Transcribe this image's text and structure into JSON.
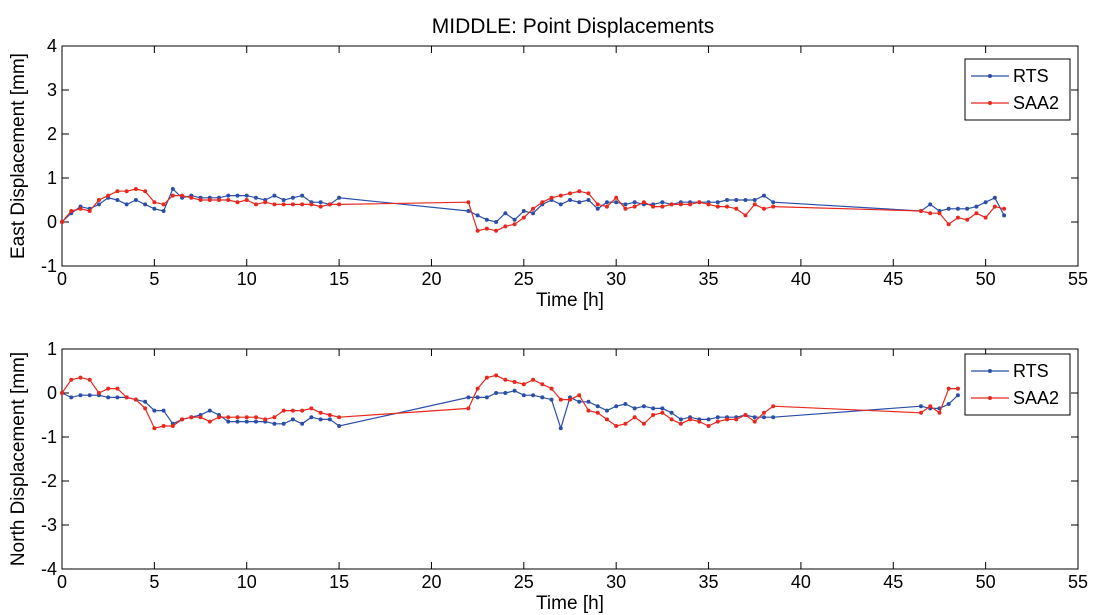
{
  "chart_data": [
    {
      "type": "line",
      "title": "MIDDLE: Point Displacements",
      "xlabel": "Time [h]",
      "ylabel": "East Displacement [mm]",
      "xlim": [
        0,
        55
      ],
      "ylim": [
        -1,
        4
      ],
      "xticks": [
        0,
        5,
        10,
        15,
        20,
        25,
        30,
        35,
        40,
        45,
        50,
        55
      ],
      "yticks": [
        -1,
        0,
        1,
        2,
        3,
        4
      ],
      "grid": false,
      "legend_position": "top-right",
      "series": [
        {
          "name": "RTS",
          "color": "#2b4fa8",
          "x": [
            0,
            0.5,
            1,
            1.5,
            2,
            2.5,
            3,
            3.5,
            4,
            4.5,
            5,
            5.5,
            6,
            6.5,
            7,
            7.5,
            8,
            8.5,
            9,
            9.5,
            10,
            10.5,
            11,
            11.5,
            12,
            12.5,
            13,
            13.5,
            14,
            14.5,
            15,
            22,
            22.5,
            23,
            23.5,
            24,
            24.5,
            25,
            25.5,
            26,
            26.5,
            27,
            27.5,
            28,
            28.5,
            29,
            29.5,
            30,
            30.5,
            31,
            31.5,
            32,
            32.5,
            33,
            33.5,
            34,
            34.5,
            35,
            35.5,
            36,
            36.5,
            37,
            37.5,
            38,
            38.5,
            46.5,
            47,
            47.5,
            48,
            48.5,
            49,
            49.5,
            50,
            50.5,
            51
          ],
          "y": [
            0,
            0.2,
            0.35,
            0.3,
            0.4,
            0.55,
            0.5,
            0.4,
            0.5,
            0.4,
            0.3,
            0.25,
            0.75,
            0.55,
            0.6,
            0.55,
            0.55,
            0.55,
            0.6,
            0.6,
            0.6,
            0.55,
            0.5,
            0.6,
            0.5,
            0.55,
            0.6,
            0.45,
            0.45,
            0.4,
            0.55,
            0.25,
            0.15,
            0.05,
            0,
            0.2,
            0.05,
            0.25,
            0.2,
            0.4,
            0.5,
            0.4,
            0.5,
            0.45,
            0.5,
            0.3,
            0.45,
            0.45,
            0.4,
            0.45,
            0.4,
            0.4,
            0.45,
            0.4,
            0.45,
            0.45,
            0.45,
            0.45,
            0.45,
            0.5,
            0.5,
            0.5,
            0.5,
            0.6,
            0.45,
            0.25,
            0.4,
            0.25,
            0.3,
            0.3,
            0.3,
            0.35,
            0.45,
            0.55,
            0.15
          ]
        },
        {
          "name": "SAA2",
          "color": "#e8281e",
          "x": [
            0,
            0.5,
            1,
            1.5,
            2,
            2.5,
            3,
            3.5,
            4,
            4.5,
            5,
            5.5,
            6,
            6.5,
            7,
            7.5,
            8,
            8.5,
            9,
            9.5,
            10,
            10.5,
            11,
            11.5,
            12,
            12.5,
            13,
            13.5,
            14,
            14.5,
            15,
            22,
            22.5,
            23,
            23.5,
            24,
            24.5,
            25,
            25.5,
            26,
            26.5,
            27,
            27.5,
            28,
            28.5,
            29,
            29.5,
            30,
            30.5,
            31,
            31.5,
            32,
            32.5,
            33,
            33.5,
            34,
            34.5,
            35,
            35.5,
            36,
            36.5,
            37,
            37.5,
            38,
            38.5,
            46.5,
            47,
            47.5,
            48,
            48.5,
            49,
            49.5,
            50,
            50.5,
            51
          ],
          "y": [
            0,
            0.25,
            0.3,
            0.25,
            0.5,
            0.6,
            0.7,
            0.7,
            0.75,
            0.7,
            0.45,
            0.4,
            0.6,
            0.6,
            0.55,
            0.5,
            0.5,
            0.5,
            0.5,
            0.45,
            0.5,
            0.4,
            0.45,
            0.4,
            0.4,
            0.4,
            0.4,
            0.4,
            0.35,
            0.4,
            0.4,
            0.45,
            -0.2,
            -0.15,
            -0.2,
            -0.1,
            -0.05,
            0.1,
            0.3,
            0.45,
            0.55,
            0.6,
            0.65,
            0.7,
            0.65,
            0.4,
            0.35,
            0.55,
            0.3,
            0.35,
            0.45,
            0.35,
            0.35,
            0.4,
            0.4,
            0.4,
            0.45,
            0.4,
            0.35,
            0.35,
            0.3,
            0.15,
            0.4,
            0.3,
            0.35,
            0.25,
            0.2,
            0.2,
            -0.05,
            0.1,
            0.05,
            0.2,
            0.1,
            0.35,
            0.3
          ]
        }
      ]
    },
    {
      "type": "line",
      "title": "",
      "xlabel": "Time [h]",
      "ylabel": "North Displacement [mm]",
      "xlim": [
        0,
        55
      ],
      "ylim": [
        -4,
        1
      ],
      "xticks": [
        0,
        5,
        10,
        15,
        20,
        25,
        30,
        35,
        40,
        45,
        50,
        55
      ],
      "yticks": [
        -4,
        -3,
        -2,
        -1,
        0,
        1
      ],
      "grid": false,
      "legend_position": "top-right",
      "series": [
        {
          "name": "RTS",
          "color": "#2b4fa8",
          "x": [
            0,
            0.5,
            1,
            1.5,
            2,
            2.5,
            3,
            3.5,
            4,
            4.5,
            5,
            5.5,
            6,
            6.5,
            7,
            7.5,
            8,
            8.5,
            9,
            9.5,
            10,
            10.5,
            11,
            11.5,
            12,
            12.5,
            13,
            13.5,
            14,
            14.5,
            15,
            22,
            22.5,
            23,
            23.5,
            24,
            24.5,
            25,
            25.5,
            26,
            26.5,
            27,
            27.5,
            28,
            28.5,
            29,
            29.5,
            30,
            30.5,
            31,
            31.5,
            32,
            32.5,
            33,
            33.5,
            34,
            34.5,
            35,
            35.5,
            36,
            36.5,
            37,
            37.5,
            38,
            38.5,
            46.5,
            47,
            47.5,
            48,
            48.5
          ],
          "y": [
            0,
            -0.1,
            -0.05,
            -0.05,
            -0.05,
            -0.1,
            -0.1,
            -0.1,
            -0.15,
            -0.2,
            -0.4,
            -0.4,
            -0.7,
            -0.6,
            -0.55,
            -0.5,
            -0.4,
            -0.5,
            -0.65,
            -0.65,
            -0.65,
            -0.65,
            -0.65,
            -0.7,
            -0.7,
            -0.6,
            -0.7,
            -0.55,
            -0.6,
            -0.6,
            -0.75,
            -0.1,
            -0.1,
            -0.1,
            0,
            0,
            0.05,
            -0.05,
            -0.05,
            -0.1,
            -0.15,
            -0.8,
            -0.1,
            -0.2,
            -0.2,
            -0.3,
            -0.4,
            -0.3,
            -0.25,
            -0.35,
            -0.3,
            -0.35,
            -0.35,
            -0.45,
            -0.6,
            -0.55,
            -0.6,
            -0.6,
            -0.55,
            -0.55,
            -0.55,
            -0.5,
            -0.55,
            -0.55,
            -0.55,
            -0.3,
            -0.35,
            -0.35,
            -0.25,
            -0.05
          ]
        },
        {
          "name": "SAA2",
          "color": "#e8281e",
          "x": [
            0,
            0.5,
            1,
            1.5,
            2,
            2.5,
            3,
            3.5,
            4,
            4.5,
            5,
            5.5,
            6,
            6.5,
            7,
            7.5,
            8,
            8.5,
            9,
            9.5,
            10,
            10.5,
            11,
            11.5,
            12,
            12.5,
            13,
            13.5,
            14,
            14.5,
            15,
            22,
            22.5,
            23,
            23.5,
            24,
            24.5,
            25,
            25.5,
            26,
            26.5,
            27,
            27.5,
            28,
            28.5,
            29,
            29.5,
            30,
            30.5,
            31,
            31.5,
            32,
            32.5,
            33,
            33.5,
            34,
            34.5,
            35,
            35.5,
            36,
            36.5,
            37,
            37.5,
            38,
            38.5,
            46.5,
            47,
            47.5,
            48,
            48.5
          ],
          "y": [
            0,
            0.3,
            0.35,
            0.3,
            0,
            0.1,
            0.1,
            -0.1,
            -0.15,
            -0.35,
            -0.8,
            -0.75,
            -0.75,
            -0.6,
            -0.55,
            -0.55,
            -0.65,
            -0.55,
            -0.55,
            -0.55,
            -0.55,
            -0.55,
            -0.6,
            -0.55,
            -0.4,
            -0.4,
            -0.4,
            -0.35,
            -0.45,
            -0.5,
            -0.55,
            -0.35,
            0.1,
            0.35,
            0.4,
            0.3,
            0.25,
            0.2,
            0.3,
            0.2,
            0.1,
            -0.15,
            -0.15,
            -0.05,
            -0.4,
            -0.45,
            -0.6,
            -0.75,
            -0.7,
            -0.55,
            -0.7,
            -0.5,
            -0.45,
            -0.6,
            -0.7,
            -0.6,
            -0.65,
            -0.75,
            -0.65,
            -0.6,
            -0.6,
            -0.5,
            -0.65,
            -0.45,
            -0.3,
            -0.45,
            -0.3,
            -0.45,
            0.1,
            0.1
          ]
        }
      ]
    }
  ]
}
